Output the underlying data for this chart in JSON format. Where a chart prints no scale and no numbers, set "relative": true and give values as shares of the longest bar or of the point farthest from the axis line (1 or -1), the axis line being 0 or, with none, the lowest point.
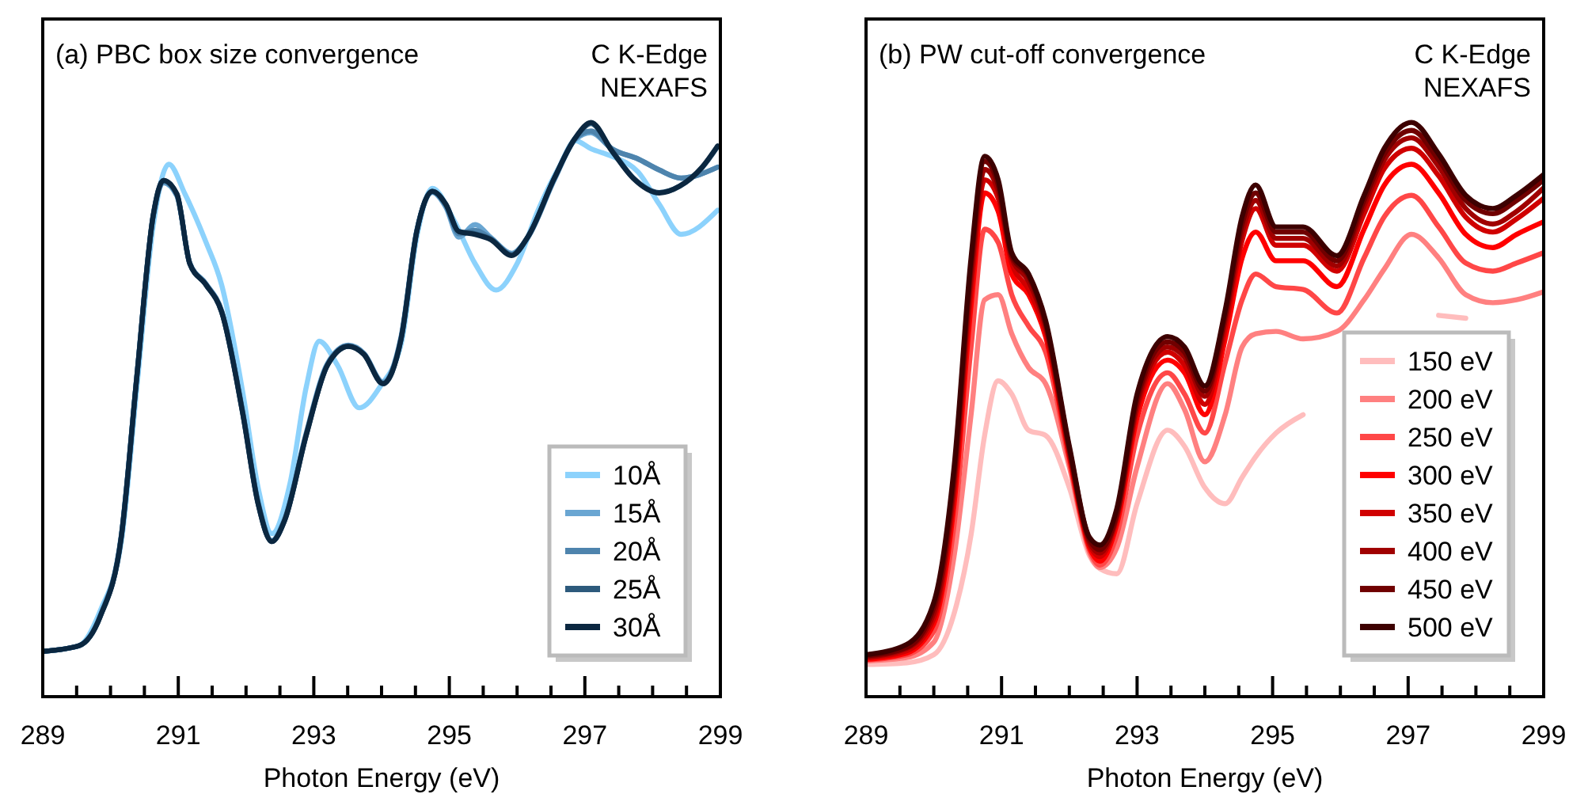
{
  "chart_data": [
    {
      "type": "line",
      "title": "(a) PBC box size convergence",
      "annotations": [
        "C K-Edge",
        "NEXAFS"
      ],
      "xlabel": "Photon Energy (eV)",
      "relative": true,
      "tick_labels": "x",
      "grid": false,
      "legend": "bottom right",
      "line_style": "solid",
      "xlim": [
        289,
        299
      ],
      "xticks": [
        289,
        {
          "value": 289.5,
          "label": null
        },
        {
          "value": 290,
          "label": null
        },
        {
          "value": 290.5,
          "label": null
        },
        291,
        {
          "value": 291.5,
          "label": null
        },
        {
          "value": 292,
          "label": null
        },
        {
          "value": 292.5,
          "label": null
        },
        293,
        {
          "value": 293.5,
          "label": null
        },
        {
          "value": 294,
          "label": null
        },
        {
          "value": 294.5,
          "label": null
        },
        295,
        {
          "value": 295.5,
          "label": null
        },
        {
          "value": 296,
          "label": null
        },
        {
          "value": 296.5,
          "label": null
        },
        297,
        {
          "value": 297.5,
          "label": null
        },
        {
          "value": 298,
          "label": null
        },
        {
          "value": 298.5,
          "label": null
        },
        299
      ],
      "series": [
        {
          "name": "10Å",
          "color": "#8cd2fc",
          "x": [
            289.0,
            289.54,
            289.85,
            290.16,
            290.39,
            290.63,
            290.86,
            291.1,
            291.41,
            291.64,
            291.95,
            292.18,
            292.38,
            292.65,
            292.89,
            293.08,
            293.35,
            293.67,
            293.98,
            294.29,
            294.52,
            294.75,
            295.07,
            295.38,
            295.69,
            296.0,
            296.31,
            296.62,
            296.86,
            297.09,
            297.4,
            297.79,
            298.1,
            298.42,
            298.96
          ],
          "values": [
            0.079,
            0.089,
            0.15,
            0.27,
            0.54,
            0.82,
            0.927,
            0.875,
            0.791,
            0.717,
            0.531,
            0.363,
            0.284,
            0.372,
            0.54,
            0.619,
            0.577,
            0.503,
            0.54,
            0.615,
            0.801,
            0.885,
            0.829,
            0.754,
            0.708,
            0.754,
            0.847,
            0.922,
            0.968,
            0.954,
            0.941,
            0.913,
            0.857,
            0.805,
            0.847
          ]
        },
        {
          "name": "15Å",
          "color": "#6aa6d2",
          "x": [
            289.0,
            289.54,
            289.85,
            290.16,
            290.39,
            290.63,
            290.78,
            290.98,
            291.17,
            291.41,
            291.64,
            291.95,
            292.18,
            292.38,
            292.57,
            292.89,
            293.2,
            293.51,
            293.74,
            294.02,
            294.29,
            294.52,
            294.75,
            294.95,
            295.14,
            295.38,
            295.61,
            295.92,
            296.16,
            296.55,
            296.86,
            297.09,
            297.4,
            297.79,
            298.1,
            298.42,
            298.96
          ],
          "values": [
            0.079,
            0.089,
            0.142,
            0.282,
            0.56,
            0.836,
            0.895,
            0.872,
            0.755,
            0.719,
            0.672,
            0.497,
            0.338,
            0.272,
            0.31,
            0.46,
            0.58,
            0.612,
            0.598,
            0.548,
            0.628,
            0.812,
            0.878,
            0.852,
            0.8,
            0.822,
            0.8,
            0.772,
            0.8,
            0.9,
            0.97,
            0.982,
            0.954,
            0.936,
            0.917,
            0.903,
            0.922
          ]
        },
        {
          "name": "20Å",
          "color": "#4e84ad",
          "x": [
            289.0,
            289.54,
            289.85,
            290.16,
            290.39,
            290.63,
            290.78,
            290.98,
            291.17,
            291.41,
            291.64,
            291.95,
            292.18,
            292.38,
            292.57,
            292.89,
            293.2,
            293.51,
            293.74,
            294.02,
            294.29,
            294.52,
            294.75,
            294.95,
            295.14,
            295.38,
            295.61,
            295.92,
            296.16,
            296.55,
            296.86,
            297.09,
            297.4,
            297.79,
            298.1,
            298.42,
            298.96
          ],
          "values": [
            0.079,
            0.089,
            0.141,
            0.28,
            0.56,
            0.837,
            0.897,
            0.873,
            0.755,
            0.718,
            0.671,
            0.496,
            0.337,
            0.271,
            0.308,
            0.458,
            0.578,
            0.611,
            0.597,
            0.546,
            0.626,
            0.811,
            0.879,
            0.855,
            0.806,
            0.812,
            0.798,
            0.77,
            0.8,
            0.902,
            0.972,
            0.985,
            0.954,
            0.936,
            0.917,
            0.903,
            0.922
          ]
        },
        {
          "name": "25Å",
          "color": "#2d5a7c",
          "x": [
            289.0,
            289.54,
            289.85,
            290.16,
            290.39,
            290.63,
            290.78,
            290.98,
            291.17,
            291.41,
            291.64,
            291.95,
            292.18,
            292.38,
            292.57,
            292.89,
            293.2,
            293.51,
            293.74,
            294.02,
            294.29,
            294.52,
            294.75,
            294.95,
            295.14,
            295.38,
            295.61,
            295.92,
            296.16,
            296.55,
            296.86,
            297.09,
            297.4,
            297.71,
            298.1,
            298.4,
            298.73,
            298.96
          ],
          "values": [
            0.079,
            0.089,
            0.14,
            0.279,
            0.559,
            0.838,
            0.899,
            0.875,
            0.754,
            0.717,
            0.67,
            0.494,
            0.335,
            0.27,
            0.307,
            0.456,
            0.577,
            0.61,
            0.596,
            0.545,
            0.624,
            0.81,
            0.88,
            0.857,
            0.81,
            0.806,
            0.797,
            0.769,
            0.801,
            0.903,
            0.973,
            0.998,
            0.951,
            0.904,
            0.878,
            0.889,
            0.921,
            0.958
          ]
        },
        {
          "name": "30Å",
          "color": "#0b2740",
          "x": [
            289.0,
            289.54,
            289.85,
            290.16,
            290.39,
            290.63,
            290.78,
            290.98,
            291.17,
            291.41,
            291.64,
            291.95,
            292.18,
            292.38,
            292.57,
            292.89,
            293.2,
            293.51,
            293.74,
            294.02,
            294.29,
            294.52,
            294.75,
            294.95,
            295.14,
            295.38,
            295.61,
            295.92,
            296.16,
            296.55,
            296.86,
            297.09,
            297.4,
            297.71,
            298.1,
            298.4,
            298.73,
            298.96
          ],
          "values": [
            0.079,
            0.089,
            0.14,
            0.279,
            0.559,
            0.838,
            0.899,
            0.875,
            0.754,
            0.717,
            0.67,
            0.494,
            0.335,
            0.27,
            0.307,
            0.456,
            0.577,
            0.61,
            0.596,
            0.545,
            0.624,
            0.81,
            0.88,
            0.857,
            0.81,
            0.805,
            0.796,
            0.768,
            0.801,
            0.903,
            0.973,
            1.0,
            0.95,
            0.903,
            0.877,
            0.889,
            0.922,
            0.959
          ]
        }
      ]
    },
    {
      "type": "line",
      "title": "(b) PW cut-off convergence",
      "annotations": [
        "C K-Edge",
        "NEXAFS"
      ],
      "xlabel": "Photon Energy (eV)",
      "relative": true,
      "tick_labels": "x",
      "grid": false,
      "legend": "bottom right",
      "line_style": "solid",
      "xlim": [
        289,
        299
      ],
      "xticks": [
        289,
        {
          "value": 289.5,
          "label": null
        },
        {
          "value": 290,
          "label": null
        },
        {
          "value": 290.5,
          "label": null
        },
        291,
        {
          "value": 291.5,
          "label": null
        },
        {
          "value": 292,
          "label": null
        },
        {
          "value": 292.5,
          "label": null
        },
        293,
        {
          "value": 293.5,
          "label": null
        },
        {
          "value": 294,
          "label": null
        },
        {
          "value": 294.5,
          "label": null
        },
        295,
        {
          "value": 295.5,
          "label": null
        },
        {
          "value": 296,
          "label": null
        },
        {
          "value": 296.5,
          "label": null
        },
        297,
        {
          "value": 297.5,
          "label": null
        },
        {
          "value": 298,
          "label": null
        },
        {
          "value": 298.5,
          "label": null
        },
        299
      ],
      "x": [
        289.0,
        289.6,
        290.0,
        290.3,
        290.55,
        290.75,
        290.95,
        291.15,
        291.4,
        291.65,
        292.0,
        292.3,
        292.45,
        292.7,
        293.0,
        293.45,
        293.7,
        294.0,
        294.3,
        294.55,
        294.75,
        295.05,
        295.45,
        295.95,
        296.35,
        296.65,
        297.05,
        297.45,
        297.85,
        298.25,
        298.6,
        299.0
      ],
      "series": [
        {
          "name": "150 eV",
          "color": "#ffbdbd",
          "values": [
            0.056,
            0.059,
            0.073,
            0.145,
            0.282,
            0.455,
            0.55,
            0.527,
            0.464,
            0.455,
            0.364,
            0.245,
            0.223,
            0.214,
            0.336,
            0.464,
            0.436,
            0.364,
            0.336,
            0.382,
            0.418,
            0.459,
            0.491,
            null,
            null,
            null,
            null,
            0.664,
            0.659,
            null,
            null,
            null
          ]
        },
        {
          "name": "200 eV",
          "color": "#ff8080",
          "values": [
            0.062,
            0.068,
            0.095,
            0.245,
            0.491,
            0.691,
            0.7,
            0.632,
            0.573,
            0.545,
            0.4,
            0.25,
            0.225,
            0.259,
            0.4,
            0.545,
            0.5,
            0.409,
            0.491,
            0.609,
            0.632,
            0.636,
            0.623,
            0.636,
            0.691,
            0.745,
            0.805,
            0.764,
            0.7,
            0.686,
            0.691,
            0.705
          ]
        },
        {
          "name": "250 eV",
          "color": "#ff4747",
          "values": [
            0.064,
            0.073,
            0.114,
            0.3,
            0.609,
            0.814,
            0.791,
            0.7,
            0.645,
            0.6,
            0.409,
            0.255,
            0.229,
            0.282,
            0.455,
            0.564,
            0.527,
            0.459,
            0.582,
            0.691,
            0.736,
            0.714,
            0.709,
            0.668,
            0.764,
            0.836,
            0.873,
            0.818,
            0.755,
            0.741,
            0.755,
            0.773
          ]
        },
        {
          "name": "300 eV",
          "color": "#ff0000",
          "values": [
            0.065,
            0.076,
            0.127,
            0.336,
            0.682,
            0.877,
            0.845,
            0.736,
            0.7,
            0.627,
            0.418,
            0.259,
            0.236,
            0.3,
            0.486,
            0.586,
            0.564,
            0.491,
            0.623,
            0.764,
            0.809,
            0.759,
            0.759,
            0.714,
            0.814,
            0.891,
            0.927,
            0.877,
            0.805,
            0.782,
            0.805,
            0.827
          ]
        },
        {
          "name": "350 eV",
          "color": "#d00000",
          "values": [
            0.067,
            0.08,
            0.136,
            0.355,
            0.709,
            0.9,
            0.868,
            0.755,
            0.709,
            0.636,
            0.423,
            0.264,
            0.244,
            0.309,
            0.5,
            0.6,
            0.577,
            0.509,
            0.641,
            0.795,
            0.85,
            0.786,
            0.786,
            0.741,
            0.841,
            0.92,
            0.955,
            0.907,
            0.835,
            0.809,
            0.832,
            0.868
          ]
        },
        {
          "name": "400 eV",
          "color": "#a00000",
          "values": [
            0.069,
            0.084,
            0.145,
            0.373,
            0.732,
            0.918,
            0.88,
            0.764,
            0.723,
            0.645,
            0.427,
            0.268,
            0.25,
            0.314,
            0.509,
            0.609,
            0.591,
            0.523,
            0.655,
            0.809,
            0.864,
            0.798,
            0.798,
            0.75,
            0.855,
            0.935,
            0.973,
            0.923,
            0.85,
            0.823,
            0.845,
            0.886
          ]
        },
        {
          "name": "450 eV",
          "color": "#700000",
          "values": [
            0.071,
            0.086,
            0.155,
            0.386,
            0.75,
            0.932,
            0.891,
            0.768,
            0.732,
            0.65,
            0.432,
            0.273,
            0.256,
            0.318,
            0.518,
            0.618,
            0.6,
            0.532,
            0.664,
            0.823,
            0.877,
            0.809,
            0.809,
            0.759,
            0.864,
            0.945,
            0.986,
            0.935,
            0.864,
            0.841,
            0.864,
            0.9
          ]
        },
        {
          "name": "500 eV",
          "color": "#3d0000",
          "values": [
            0.073,
            0.091,
            0.164,
            0.4,
            0.764,
            0.941,
            0.9,
            0.773,
            0.736,
            0.655,
            0.436,
            0.277,
            0.264,
            0.327,
            0.527,
            0.627,
            0.609,
            0.541,
            0.673,
            0.836,
            0.891,
            0.818,
            0.818,
            0.768,
            0.873,
            0.955,
            1.0,
            0.945,
            0.873,
            0.85,
            0.873,
            0.909
          ]
        }
      ]
    }
  ]
}
